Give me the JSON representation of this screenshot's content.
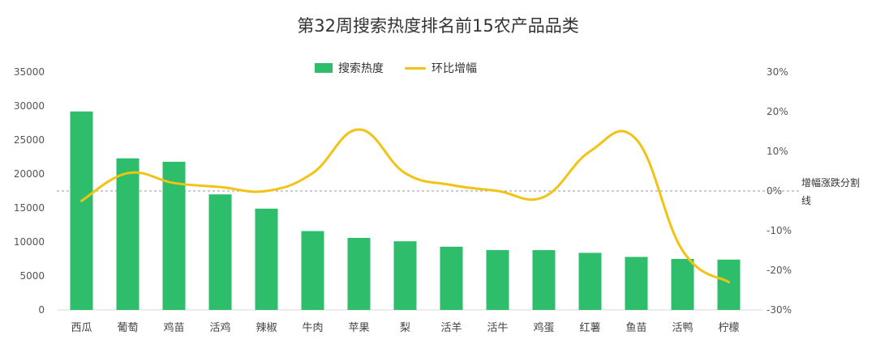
{
  "chart_data": {
    "type": "bar+line",
    "title": "第32周搜索热度排名前15农产品品类",
    "categories": [
      "西瓜",
      "葡萄",
      "鸡苗",
      "活鸡",
      "辣椒",
      "牛肉",
      "苹果",
      "梨",
      "活羊",
      "活牛",
      "鸡蛋",
      "红薯",
      "鱼苗",
      "活鸭",
      "柠檬"
    ],
    "series": [
      {
        "name": "搜索热度",
        "type": "bar",
        "axis": "left",
        "color": "#2ebd6b",
        "values": [
          29200,
          22300,
          21800,
          17000,
          14900,
          11600,
          10600,
          10100,
          9300,
          8800,
          8800,
          8400,
          7800,
          7500,
          7400
        ]
      },
      {
        "name": "环比增幅",
        "type": "line",
        "axis": "right",
        "color": "#f2c314",
        "values": [
          -2.5,
          4.5,
          2,
          1,
          0,
          4.5,
          15.5,
          4.5,
          1.5,
          0,
          -1.5,
          10,
          13,
          -15,
          -23
        ]
      }
    ],
    "left_axis": {
      "min": 0,
      "max": 35000,
      "ticks": [
        "0",
        "5000",
        "10000",
        "15000",
        "20000",
        "25000",
        "30000",
        "35000"
      ]
    },
    "right_axis": {
      "min": -30,
      "max": 30,
      "ticks": [
        "-30%",
        "-20%",
        "-10%",
        "0%",
        "10%",
        "20%",
        "30%"
      ]
    },
    "reference_line": {
      "value": 0,
      "axis": "right",
      "label": "增幅涨跌分割线",
      "style": "dashed"
    },
    "legend_position": "top-center",
    "grid": false
  }
}
